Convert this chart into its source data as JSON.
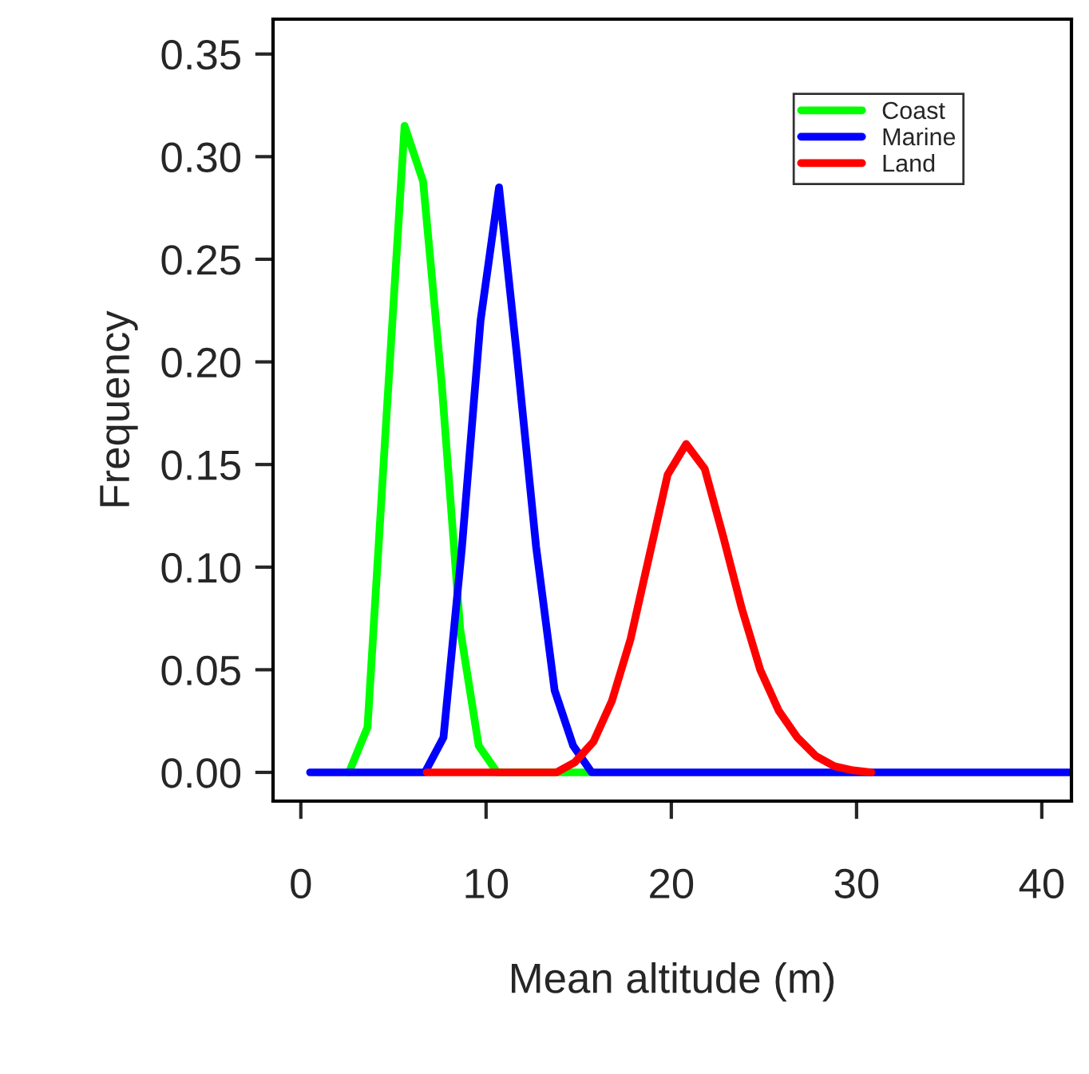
{
  "chart_data": {
    "type": "line",
    "xlabel": "Mean altitude (m)",
    "ylabel": "Frequency",
    "xlim": [
      -1.5,
      41.6
    ],
    "ylim": [
      -0.014,
      0.367
    ],
    "xticks": [
      0,
      10,
      20,
      30,
      40
    ],
    "yticks": [
      {
        "value": 0,
        "label": "0.00"
      },
      {
        "value": 0.05,
        "label": "0.05"
      },
      {
        "value": 0.1,
        "label": "0.10"
      },
      {
        "value": 0.15,
        "label": "0.15"
      },
      {
        "value": 0.2,
        "label": "0.20"
      },
      {
        "value": 0.25,
        "label": "0.25"
      },
      {
        "value": 0.3,
        "label": "0.30"
      },
      {
        "value": 0.35,
        "label": "0.35"
      }
    ],
    "grid": false,
    "legend": "top right",
    "marker": "none",
    "line_style": "solid",
    "series": [
      {
        "name": "Coast",
        "color": "#00ff00",
        "x": [
          2.6,
          3.6,
          4.6,
          5.6,
          6.6,
          7.6,
          8.6,
          9.6,
          10.6,
          11.6,
          12.6,
          13.6,
          14.6,
          15.6
        ],
        "values": [
          0,
          0.022,
          0.17,
          0.315,
          0.288,
          0.19,
          0.07,
          0.013,
          0,
          0,
          0,
          0,
          0,
          0
        ]
      },
      {
        "name": "Marine",
        "color": "#0000ff",
        "x": [
          0.5,
          1.7,
          2.7,
          3.7,
          4.7,
          5.7,
          6.7,
          7.7,
          8.7,
          9.7,
          10.7,
          11.7,
          12.7,
          13.7,
          14.7,
          15.7,
          16.7,
          20.7,
          25.7,
          30.7,
          35.7,
          41.5
        ],
        "values": [
          0,
          0,
          0,
          0,
          0,
          0,
          0,
          0.017,
          0.11,
          0.22,
          0.285,
          0.2,
          0.11,
          0.04,
          0.013,
          0,
          0,
          0,
          0,
          0,
          0,
          0
        ]
      },
      {
        "name": "Land",
        "color": "#ff0000",
        "x": [
          6.8,
          7.8,
          8.8,
          9.8,
          10.8,
          11.8,
          12.8,
          13.8,
          14.8,
          15.8,
          16.8,
          17.8,
          18.8,
          19.8,
          20.8,
          21.8,
          22.8,
          23.8,
          24.8,
          25.8,
          26.8,
          27.8,
          28.8,
          29.8,
          30.8
        ],
        "values": [
          0,
          0,
          0,
          0,
          0,
          0,
          0,
          0,
          0.005,
          0.015,
          0.035,
          0.065,
          0.105,
          0.145,
          0.16,
          0.148,
          0.115,
          0.08,
          0.05,
          0.03,
          0.017,
          0.008,
          0.003,
          0.001,
          0
        ]
      }
    ]
  }
}
